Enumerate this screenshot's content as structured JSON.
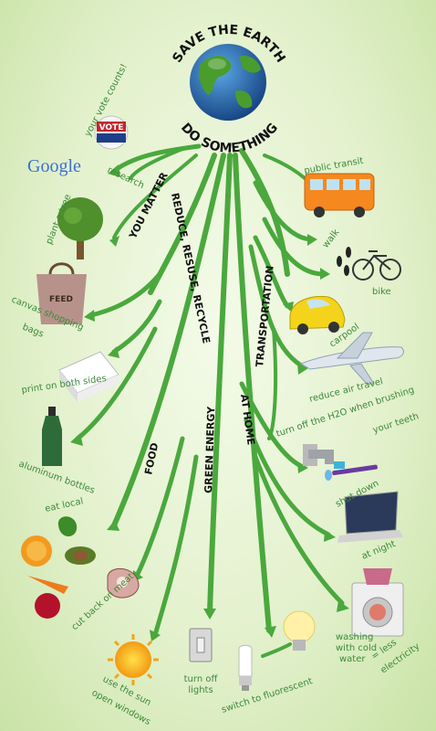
{
  "header": {
    "top": "SAVE THE EARTH",
    "bottom": "DO SOMETHING"
  },
  "vote": {
    "text": "VOTE",
    "caption": "your vote counts!"
  },
  "google": {
    "logo": "Google",
    "research": "research"
  },
  "categories": {
    "you_matter": "YOU MATTER",
    "reduce": "REDUCE, RESUSE, RECYCLE",
    "food": "FOOD",
    "green_energy": "GREEN ENERGY",
    "at_home": "AT HOME",
    "transportation": "TRANSPORTATION"
  },
  "labels": {
    "plant_tree": "plant a tree",
    "canvas_1": "canvas shopping",
    "canvas_2": "bags",
    "print": "print on both sides",
    "aluminum": "aluminum bottles",
    "eat_local": "eat local",
    "cut_back": "cut back on meat",
    "use_sun": "use the sun",
    "open_windows": "open windows",
    "turn_off_1": "turn off",
    "turn_off_2": "lights",
    "switch": "switch to fluorescent",
    "washing_1": "washing",
    "washing_2": "with cold",
    "washing_3": "water",
    "less_1": "= less",
    "less_2": "electricity",
    "at_night": "at night",
    "shut_down": "shut down",
    "h2o_1": "turn off the H2O when brushing",
    "h2o_2": "your teeth",
    "reduce_air": "reduce air travel",
    "carpool": "carpool",
    "bike": "bike",
    "walk": "walk",
    "transit": "public transit"
  },
  "bag_text": "FEED",
  "colors": {
    "branch": "#4aa83d",
    "label": "#3c8a3a",
    "background": "#e3f1cd"
  }
}
